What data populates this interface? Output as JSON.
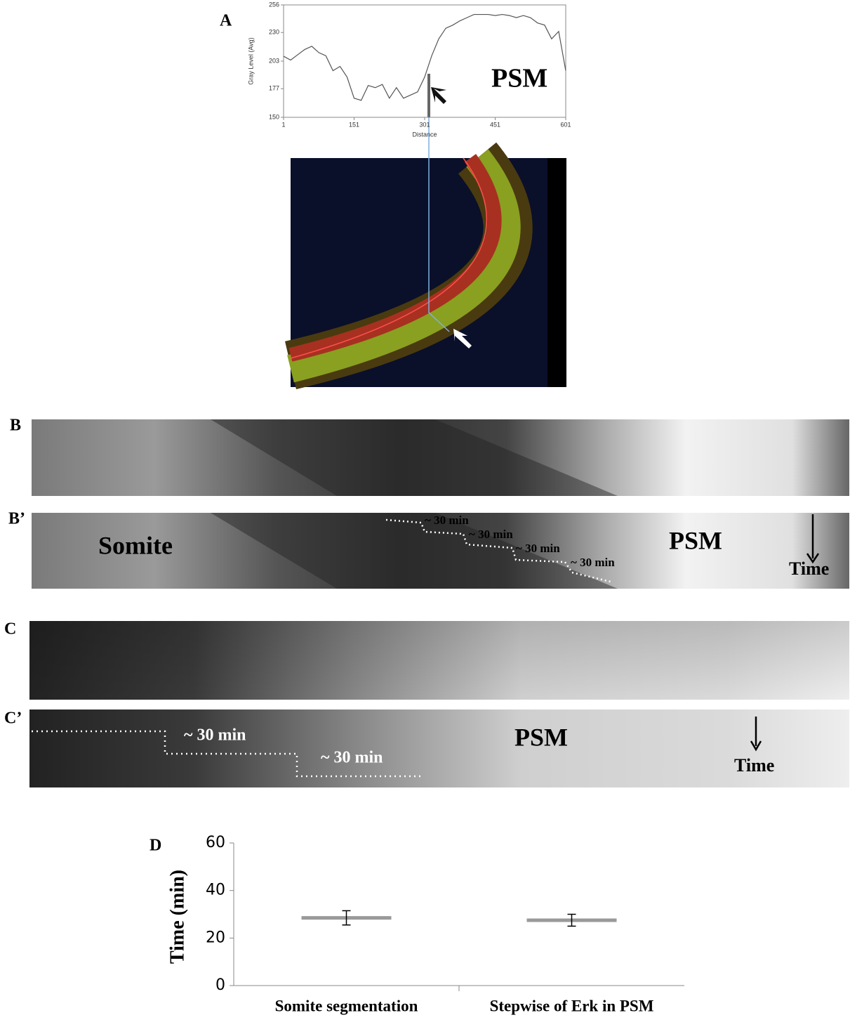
{
  "chart_data": [
    {
      "type": "line",
      "panel": "A",
      "x_label": "Distance",
      "y_label": "Gray Level (Avg)",
      "annotation": "PSM",
      "x": [
        1,
        16,
        31,
        46,
        61,
        76,
        91,
        106,
        121,
        136,
        151,
        166,
        181,
        196,
        211,
        226,
        241,
        256,
        271,
        286,
        301,
        316,
        331,
        346,
        361,
        376,
        391,
        406,
        421,
        436,
        451,
        466,
        481,
        496,
        511,
        526,
        541,
        556,
        571,
        586,
        601
      ],
      "series": [
        {
          "color": "#555555",
          "values": [
            207.6,
            204,
            209,
            214,
            217,
            211,
            208,
            194,
            198,
            188,
            168,
            166,
            180,
            178,
            181,
            168,
            178,
            168,
            171,
            174,
            188,
            208,
            224,
            234,
            237,
            241,
            244,
            247,
            247,
            247,
            246,
            247,
            246,
            244,
            246,
            244,
            239,
            237,
            224,
            231,
            194
          ]
        }
      ],
      "xlim": [
        1,
        601
      ],
      "ylim": [
        150,
        256
      ],
      "xticks": [
        1,
        151,
        301,
        451,
        601
      ],
      "yticks": [
        150,
        177,
        203,
        230,
        256
      ]
    },
    {
      "type": "errorbar",
      "panel": "D",
      "y_label": "Time (min)",
      "categories": [
        "Somite segmentation",
        "Stepwise of Erk in PSM"
      ],
      "values": [
        28.5,
        27.5
      ],
      "errors": [
        3,
        2.5
      ],
      "color": "#999999",
      "ylim": [
        0,
        60
      ],
      "yticks": [
        0,
        20,
        40,
        60
      ]
    }
  ],
  "kymographs": [
    {
      "panel": "B",
      "annotations": []
    },
    {
      "panel": "B’",
      "annotations": [
        "Somite",
        "~ 30 min",
        "~ 30 min",
        "~ 30 min",
        "~ 30 min",
        "PSM",
        "Time"
      ]
    },
    {
      "panel": "C",
      "annotations": []
    },
    {
      "panel": "C’",
      "annotations": [
        "~ 30 min",
        "~ 30 min",
        "PSM",
        "Time"
      ]
    }
  ]
}
